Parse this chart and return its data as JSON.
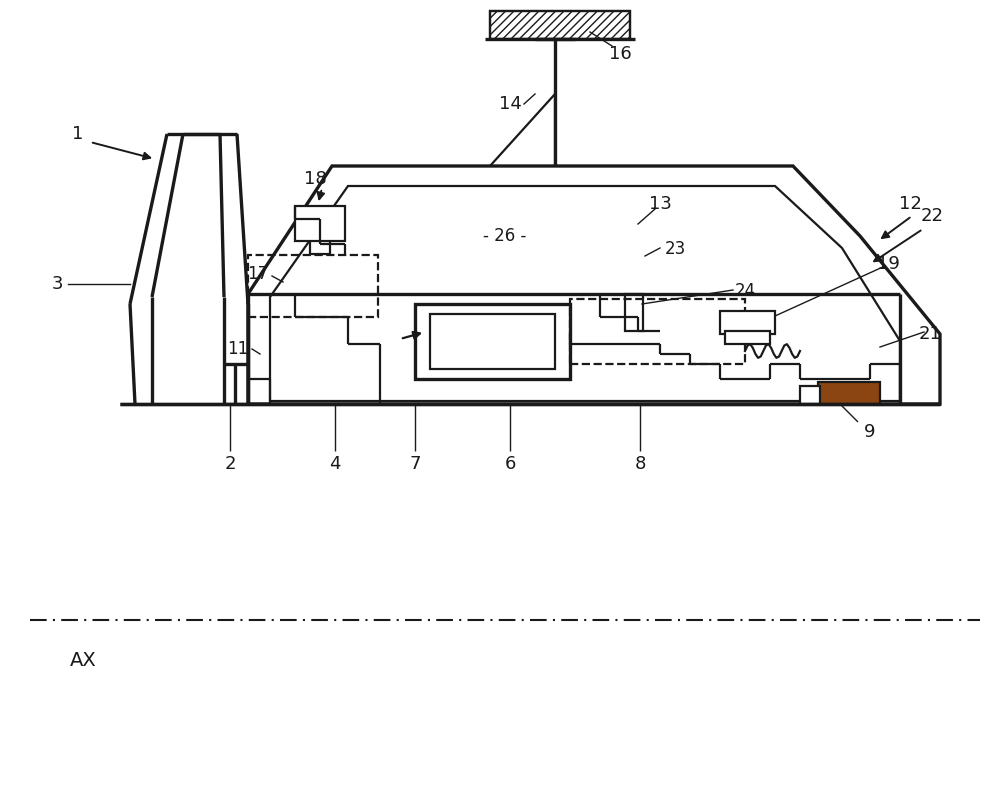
{
  "bg_color": "#ffffff",
  "lc": "#1a1a1a",
  "lw": 1.6,
  "lw2": 2.4,
  "fig_width": 10.0,
  "fig_height": 7.94
}
